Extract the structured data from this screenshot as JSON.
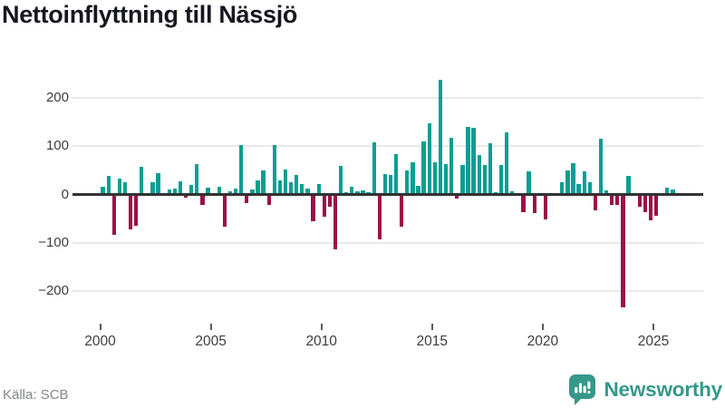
{
  "title": "Nettoinflyttning till Nässjö",
  "footer": {
    "source": "Källa: SCB",
    "brand": "Newsworthy"
  },
  "chart_data": {
    "type": "bar",
    "title": "Nettoinflyttning till Nässjö",
    "xlabel": "",
    "ylabel": "",
    "grid": "horizontal",
    "legend": "none",
    "x_axis": {
      "tick_labels": [
        "2000",
        "2005",
        "2010",
        "2015",
        "2020",
        "2025"
      ]
    },
    "y_axis": {
      "tick_labels": [
        "200",
        "100",
        "0",
        "−100",
        "−200"
      ],
      "tick_values": [
        200,
        100,
        0,
        -100,
        -200
      ],
      "range": [
        -250,
        250
      ]
    },
    "colors": {
      "positive": "#0b9e93",
      "negative": "#9b1048"
    },
    "frequency": "quarterly",
    "series": [
      {
        "name": "Nettoinflyttning",
        "years": [
          {
            "year": 2000,
            "q": [
              16,
              38,
              -83,
              32
            ]
          },
          {
            "year": 2001,
            "q": [
              25,
              -72,
              -64,
              57
            ]
          },
          {
            "year": 2002,
            "q": [
              0,
              25,
              44,
              0
            ]
          },
          {
            "year": 2003,
            "q": [
              11,
              13,
              28,
              -7
            ]
          },
          {
            "year": 2004,
            "q": [
              20,
              63,
              -21,
              14
            ]
          },
          {
            "year": 2005,
            "q": [
              3,
              16,
              -66,
              6
            ]
          },
          {
            "year": 2006,
            "q": [
              12,
              102,
              -17,
              10
            ]
          },
          {
            "year": 2007,
            "q": [
              29,
              50,
              -21,
              102
            ]
          },
          {
            "year": 2008,
            "q": [
              30,
              51,
              25,
              41
            ]
          },
          {
            "year": 2009,
            "q": [
              22,
              13,
              -56,
              21
            ]
          },
          {
            "year": 2010,
            "q": [
              -45,
              -25,
              -113,
              60
            ]
          },
          {
            "year": 2011,
            "q": [
              5,
              16,
              7,
              8
            ]
          },
          {
            "year": 2012,
            "q": [
              5,
              108,
              -92,
              43
            ]
          },
          {
            "year": 2013,
            "q": [
              41,
              84,
              -66,
              50
            ]
          },
          {
            "year": 2014,
            "q": [
              66,
              18,
              109,
              147
            ]
          },
          {
            "year": 2015,
            "q": [
              66,
              238,
              63,
              118
            ]
          },
          {
            "year": 2016,
            "q": [
              -9,
              61,
              139,
              138
            ]
          },
          {
            "year": 2017,
            "q": [
              82,
              61,
              107,
              5
            ]
          },
          {
            "year": 2018,
            "q": [
              62,
              128,
              7,
              3
            ]
          },
          {
            "year": 2019,
            "q": [
              -36,
              47,
              -39,
              0
            ]
          },
          {
            "year": 2020,
            "q": [
              -51,
              0,
              0,
              25
            ]
          },
          {
            "year": 2021,
            "q": [
              49,
              64,
              21,
              47
            ]
          },
          {
            "year": 2022,
            "q": [
              26,
              -33,
              115,
              9
            ]
          },
          {
            "year": 2023,
            "q": [
              -21,
              -21,
              -233,
              38
            ]
          },
          {
            "year": 2024,
            "q": [
              0,
              -25,
              -37,
              -53
            ]
          },
          {
            "year": 2025,
            "q": [
              -44,
              0,
              15,
              10
            ]
          }
        ]
      }
    ]
  }
}
